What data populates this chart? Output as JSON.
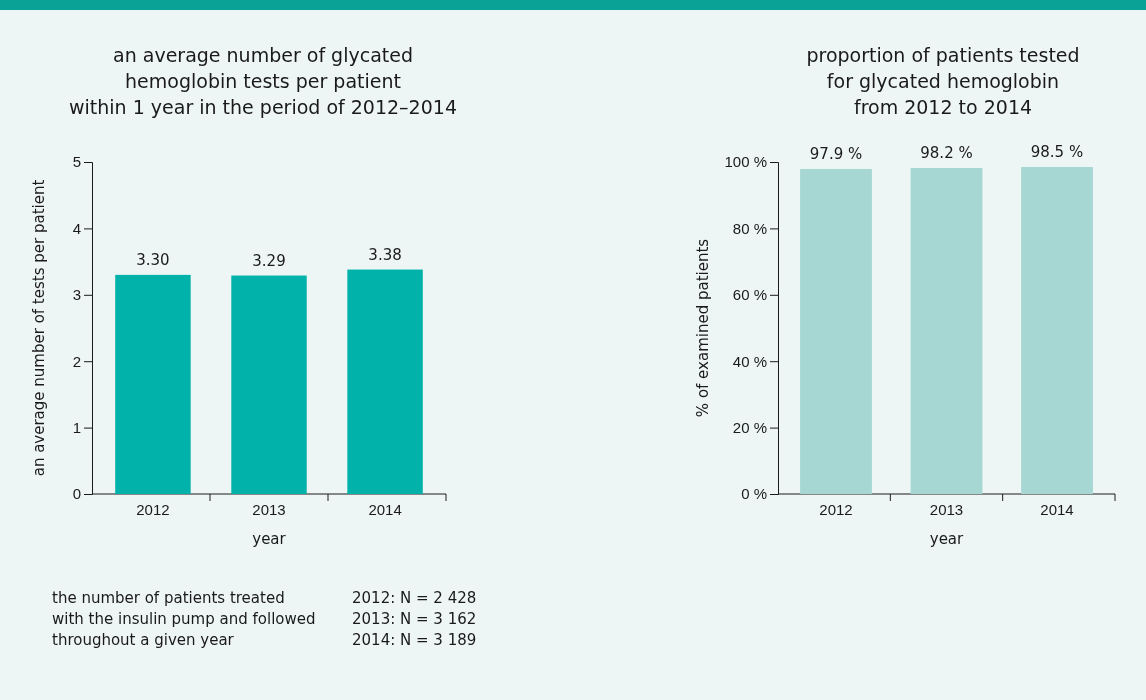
{
  "chart_data": [
    {
      "type": "bar",
      "title": "an average number of glycated\nhemoglobin tests per patient\nwithin 1 year in the period of 2012–2014",
      "xlabel": "year",
      "ylabel": "an average number of tests per patient",
      "categories": [
        "2012",
        "2013",
        "2014"
      ],
      "values": [
        3.3,
        3.29,
        3.38
      ],
      "value_labels": [
        "3.30",
        "3.29",
        "3.38"
      ],
      "color": "#00b2a9",
      "ylim": [
        0,
        5
      ],
      "yticks": [
        0,
        1,
        2,
        3,
        4,
        5
      ],
      "annotations": [
        "the number of patients treated\nwith the insulin pump and followed\nthroughout a given year",
        "2012: N = 2 428\n2013: N = 3 162\n2014: N = 3 189"
      ]
    },
    {
      "type": "bar",
      "title": "proportion of patients tested\nfor glycated hemoglobin\nfrom 2012 to 2014",
      "xlabel": "year",
      "ylabel": "% of examined patients",
      "categories": [
        "2012",
        "2013",
        "2014"
      ],
      "values": [
        97.9,
        98.2,
        98.5
      ],
      "value_labels": [
        "97.9 %",
        "98.2 %",
        "98.5 %"
      ],
      "color": "#a6d7d3",
      "ylim": [
        0,
        100
      ],
      "yticks": [
        {
          "value": 0,
          "label": "0 %"
        },
        {
          "value": 20,
          "label": "20 %"
        },
        {
          "value": 40,
          "label": "40 %"
        },
        {
          "value": 60,
          "label": "60 %"
        },
        {
          "value": 80,
          "label": "80 %"
        },
        {
          "value": 100,
          "label": "100 %"
        }
      ]
    }
  ]
}
